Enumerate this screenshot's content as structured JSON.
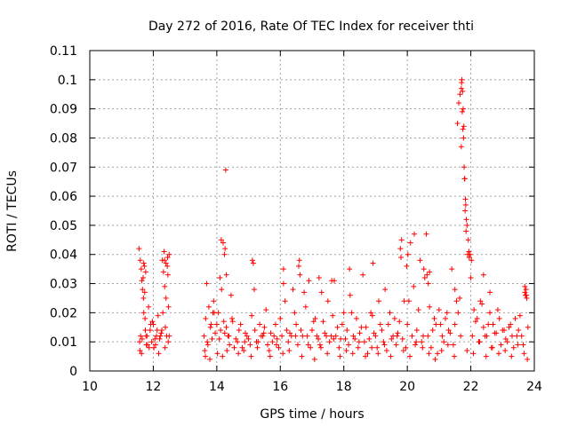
{
  "chart_data": {
    "type": "scatter",
    "title": "Day 272 of 2016, Rate Of TEC Index for receiver thti",
    "xlabel": "GPS time / hours",
    "ylabel": "ROTI / TECUs",
    "xlim": [
      10,
      24
    ],
    "ylim": [
      0,
      0.11
    ],
    "x_ticks": [
      10,
      12,
      14,
      16,
      18,
      20,
      22,
      24
    ],
    "x_tick_labels": [
      "10",
      "12",
      "14",
      "16",
      "18",
      "20",
      "22",
      "24"
    ],
    "y_ticks": [
      0,
      0.01,
      0.02,
      0.03,
      0.04,
      0.05,
      0.06,
      0.07,
      0.08,
      0.09,
      0.1,
      0.11
    ],
    "y_tick_labels": [
      "0",
      "0.01",
      "0.02",
      "0.03",
      "0.04",
      "0.05",
      "0.06",
      "0.07",
      "0.08",
      "0.09",
      "0.1",
      "0.11"
    ],
    "grid": true,
    "marker": "+",
    "marker_color": "#ff0000",
    "series": [
      {
        "name": "ROTI",
        "x": [
          11.55,
          11.6,
          11.62,
          11.65,
          11.68,
          11.7,
          11.72,
          11.75,
          11.78,
          11.8,
          11.85,
          11.9,
          11.95,
          12.0,
          12.05,
          12.1,
          12.15,
          12.2,
          12.25,
          12.3,
          12.32,
          12.35,
          12.38,
          12.4,
          12.42,
          12.45,
          12.48,
          12.5,
          11.58,
          11.66,
          11.74,
          11.82,
          11.92,
          12.02,
          12.12,
          12.22,
          12.36,
          12.44,
          13.6,
          13.65,
          13.7,
          13.75,
          13.8,
          13.85,
          13.9,
          13.95,
          14.0,
          14.05,
          14.1,
          14.15,
          14.2,
          14.25,
          14.28,
          14.3,
          14.35,
          14.4,
          14.5,
          14.6,
          14.7,
          14.8,
          14.9,
          15.0,
          15.1,
          15.15,
          15.2,
          15.3,
          15.4,
          15.5,
          15.6,
          15.7,
          15.8,
          15.9,
          16.0,
          16.05,
          16.1,
          16.15,
          16.2,
          16.3,
          16.4,
          16.5,
          16.6,
          16.7,
          16.8,
          16.9,
          17.0,
          17.1,
          17.2,
          17.3,
          17.4,
          17.5,
          17.6,
          17.7,
          17.8,
          17.9,
          18.0,
          18.1,
          18.2,
          18.3,
          18.4,
          18.5,
          18.6,
          18.7,
          18.8,
          18.9,
          19.0,
          19.1,
          19.2,
          19.3,
          19.4,
          19.5,
          19.6,
          19.7,
          19.8,
          19.9,
          20.0,
          20.1,
          20.2,
          20.3,
          20.4,
          20.5,
          20.6,
          20.7,
          20.8,
          20.9,
          21.0,
          21.1,
          21.2,
          21.3,
          21.4,
          21.5,
          21.6,
          21.65,
          21.7,
          21.72,
          21.74,
          21.76,
          21.78,
          21.8,
          21.82,
          21.85,
          21.9,
          21.95,
          22.0,
          22.1,
          22.2,
          22.3,
          22.4,
          22.5,
          22.6,
          22.7,
          22.8,
          22.9,
          23.0,
          23.1,
          23.2,
          23.3,
          23.4,
          23.5,
          23.6,
          23.7,
          23.75,
          23.8,
          13.62,
          13.72,
          13.82,
          13.92,
          14.02,
          14.12,
          14.22,
          14.32,
          14.45,
          14.55,
          14.65,
          14.75,
          14.85,
          14.95,
          15.05,
          15.25,
          15.35,
          15.45,
          15.55,
          15.65,
          15.75,
          15.85,
          15.95,
          16.25,
          16.35,
          16.45,
          16.55,
          16.65,
          16.75,
          16.85,
          16.95,
          17.05,
          17.15,
          17.25,
          17.35,
          17.45,
          17.55,
          17.65,
          17.75,
          17.85,
          17.95,
          18.05,
          18.15,
          18.25,
          18.35,
          18.45,
          18.55,
          18.65,
          18.75,
          18.85,
          18.95,
          19.05,
          19.15,
          19.25,
          19.35,
          19.45,
          19.55,
          19.65,
          19.75,
          19.85,
          19.95,
          20.05,
          20.15,
          20.25,
          20.35,
          20.45,
          20.55,
          20.65,
          20.75,
          20.85,
          20.95,
          21.05,
          21.15,
          21.25,
          21.35,
          21.45,
          21.55,
          22.05,
          22.15,
          22.25,
          22.35,
          22.45,
          22.55,
          22.65,
          22.75,
          22.85,
          22.95,
          23.05,
          23.15,
          23.25,
          23.35,
          23.45,
          23.55,
          23.65,
          11.57,
          11.63,
          11.69,
          11.77,
          11.87,
          11.97,
          12.07,
          12.17,
          12.27,
          12.37,
          12.47,
          13.64,
          13.78,
          13.88,
          14.08,
          14.18,
          14.38,
          14.48,
          14.68,
          14.88,
          15.08,
          15.28,
          15.48,
          15.68,
          15.88,
          16.08,
          16.28,
          16.48,
          16.68,
          16.88,
          17.08,
          17.28,
          17.48,
          17.68,
          17.88,
          18.08,
          18.28,
          18.48,
          18.68,
          18.88,
          19.08,
          19.28,
          19.48,
          19.68,
          19.88,
          20.08,
          20.28,
          20.48,
          20.68,
          20.88,
          21.08,
          21.28,
          21.48,
          21.68,
          21.88,
          22.08,
          22.28,
          22.48,
          22.68,
          22.88,
          23.08,
          23.28,
          23.48,
          23.68,
          23.78,
          11.59,
          11.64,
          11.7,
          11.73,
          11.76,
          12.28,
          12.34,
          12.4,
          12.46,
          12.5,
          13.68,
          14.14,
          14.24,
          14.26,
          14.3,
          15.12,
          15.18,
          16.1,
          16.58,
          16.62,
          17.22,
          17.62,
          18.18,
          18.92,
          19.78,
          19.82,
          19.98,
          20.02,
          20.22,
          20.52,
          20.62,
          20.66,
          20.7,
          21.5,
          21.58,
          21.62,
          21.66,
          21.7,
          21.71,
          21.73,
          21.75,
          21.77,
          21.79,
          21.81,
          21.83,
          21.84,
          21.86,
          21.88,
          21.92,
          21.94,
          21.98,
          22.02,
          22.4,
          22.6,
          23.7,
          23.72,
          23.74,
          23.76
        ],
        "y": [
          0.042,
          0.012,
          0.035,
          0.011,
          0.032,
          0.02,
          0.036,
          0.014,
          0.009,
          0.012,
          0.022,
          0.014,
          0.01,
          0.016,
          0.011,
          0.012,
          0.019,
          0.011,
          0.013,
          0.02,
          0.034,
          0.038,
          0.015,
          0.025,
          0.012,
          0.039,
          0.022,
          0.012,
          0.007,
          0.028,
          0.018,
          0.009,
          0.016,
          0.008,
          0.014,
          0.012,
          0.029,
          0.036,
          0.012,
          0.018,
          0.01,
          0.022,
          0.015,
          0.011,
          0.024,
          0.013,
          0.016,
          0.02,
          0.032,
          0.028,
          0.044,
          0.013,
          0.069,
          0.015,
          0.012,
          0.009,
          0.017,
          0.011,
          0.014,
          0.008,
          0.013,
          0.011,
          0.019,
          0.037,
          0.014,
          0.01,
          0.012,
          0.015,
          0.009,
          0.013,
          0.012,
          0.011,
          0.018,
          0.012,
          0.035,
          0.024,
          0.014,
          0.013,
          0.028,
          0.016,
          0.038,
          0.012,
          0.022,
          0.031,
          0.014,
          0.018,
          0.011,
          0.027,
          0.013,
          0.024,
          0.012,
          0.031,
          0.015,
          0.011,
          0.02,
          0.014,
          0.026,
          0.012,
          0.018,
          0.013,
          0.033,
          0.015,
          0.011,
          0.019,
          0.012,
          0.024,
          0.014,
          0.028,
          0.016,
          0.011,
          0.018,
          0.013,
          0.039,
          0.024,
          0.016,
          0.044,
          0.029,
          0.014,
          0.038,
          0.012,
          0.047,
          0.022,
          0.014,
          0.016,
          0.021,
          0.012,
          0.018,
          0.014,
          0.035,
          0.016,
          0.02,
          0.025,
          0.077,
          0.1,
          0.096,
          0.09,
          0.084,
          0.066,
          0.055,
          0.048,
          0.04,
          0.039,
          0.032,
          0.021,
          0.018,
          0.024,
          0.015,
          0.012,
          0.02,
          0.016,
          0.013,
          0.018,
          0.014,
          0.011,
          0.015,
          0.012,
          0.018,
          0.014,
          0.012,
          0.027,
          0.026,
          0.015,
          0.007,
          0.009,
          0.016,
          0.02,
          0.006,
          0.014,
          0.017,
          0.007,
          0.026,
          0.008,
          0.01,
          0.016,
          0.007,
          0.012,
          0.009,
          0.01,
          0.016,
          0.012,
          0.021,
          0.007,
          0.01,
          0.016,
          0.008,
          0.01,
          0.012,
          0.02,
          0.009,
          0.014,
          0.027,
          0.012,
          0.008,
          0.017,
          0.012,
          0.009,
          0.017,
          0.012,
          0.01,
          0.019,
          0.012,
          0.008,
          0.016,
          0.011,
          0.009,
          0.02,
          0.011,
          0.008,
          0.015,
          0.01,
          0.006,
          0.02,
          0.013,
          0.008,
          0.016,
          0.01,
          0.007,
          0.02,
          0.012,
          0.009,
          0.017,
          0.011,
          0.008,
          0.024,
          0.012,
          0.009,
          0.021,
          0.01,
          0.032,
          0.012,
          0.008,
          0.018,
          0.006,
          0.016,
          0.01,
          0.02,
          0.013,
          0.009,
          0.024,
          0.012,
          0.017,
          0.01,
          0.023,
          0.012,
          0.016,
          0.008,
          0.013,
          0.021,
          0.009,
          0.014,
          0.01,
          0.016,
          0.008,
          0.012,
          0.019,
          0.009,
          0.01,
          0.006,
          0.025,
          0.012,
          0.008,
          0.017,
          0.009,
          0.006,
          0.014,
          0.008,
          0.01,
          0.005,
          0.004,
          0.02,
          0.011,
          0.005,
          0.012,
          0.018,
          0.006,
          0.01,
          0.005,
          0.008,
          0.013,
          0.005,
          0.009,
          0.006,
          0.007,
          0.012,
          0.005,
          0.009,
          0.004,
          0.008,
          0.006,
          0.011,
          0.005,
          0.007,
          0.006,
          0.01,
          0.005,
          0.008,
          0.006,
          0.009,
          0.005,
          0.012,
          0.007,
          0.005,
          0.01,
          0.008,
          0.006,
          0.004,
          0.007,
          0.009,
          0.005,
          0.012,
          0.007,
          0.006,
          0.01,
          0.005,
          0.008,
          0.006,
          0.007,
          0.005,
          0.009,
          0.006,
          0.004,
          0.038,
          0.031,
          0.037,
          0.027,
          0.034,
          0.038,
          0.041,
          0.037,
          0.033,
          0.04,
          0.03,
          0.045,
          0.04,
          0.042,
          0.033,
          0.038,
          0.028,
          0.03,
          0.036,
          0.033,
          0.032,
          0.031,
          0.035,
          0.037,
          0.042,
          0.045,
          0.036,
          0.04,
          0.047,
          0.035,
          0.033,
          0.03,
          0.034,
          0.028,
          0.085,
          0.092,
          0.095,
          0.097,
          0.099,
          0.089,
          0.083,
          0.08,
          0.07,
          0.066,
          0.059,
          0.057,
          0.052,
          0.05,
          0.045,
          0.041,
          0.04,
          0.038,
          0.033,
          0.027,
          0.029,
          0.026,
          0.028,
          0.025
        ]
      }
    ]
  }
}
